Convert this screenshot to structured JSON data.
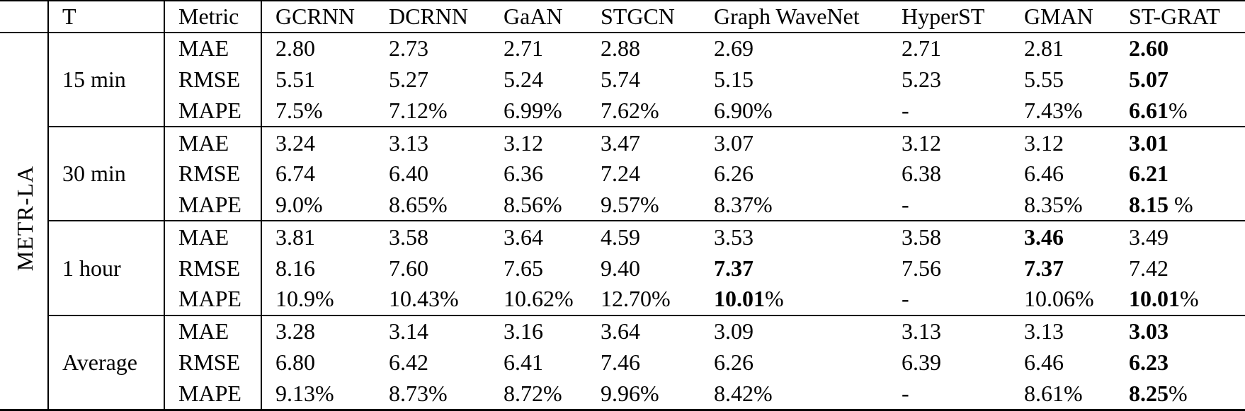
{
  "colors": {
    "text": "#000000",
    "background": "#ffffff",
    "rule": "#000000"
  },
  "table": {
    "dataset_label": "METR-LA",
    "header": {
      "corner": "",
      "t": "T",
      "metric": "Metric",
      "models": [
        "GCRNN",
        "DCRNN",
        "GaAN",
        "STGCN",
        "Graph WaveNet",
        "HyperST",
        "GMAN",
        "ST-GRAT"
      ]
    },
    "groups": [
      {
        "t": "15 min",
        "rows": [
          {
            "metric": "MAE",
            "values": [
              "2.80",
              "2.73",
              "2.71",
              "2.88",
              "2.69",
              "2.71",
              "2.81",
              "2.60"
            ],
            "bold": [
              7
            ]
          },
          {
            "metric": "RMSE",
            "values": [
              "5.51",
              "5.27",
              "5.24",
              "5.74",
              "5.15",
              "5.23",
              "5.55",
              "5.07"
            ],
            "bold": [
              7
            ]
          },
          {
            "metric": "MAPE",
            "values": [
              "7.5%",
              "7.12%",
              "6.99%",
              "7.62%",
              "6.90%",
              "-",
              "7.43%",
              "6.61%"
            ],
            "bold": [
              7
            ]
          }
        ]
      },
      {
        "t": "30 min",
        "rows": [
          {
            "metric": "MAE",
            "values": [
              "3.24",
              "3.13",
              "3.12",
              "3.47",
              "3.07",
              "3.12",
              "3.12",
              "3.01"
            ],
            "bold": [
              7
            ]
          },
          {
            "metric": "RMSE",
            "values": [
              "6.74",
              "6.40",
              "6.36",
              "7.24",
              "6.26",
              "6.38",
              "6.46",
              "6.21"
            ],
            "bold": [
              7
            ]
          },
          {
            "metric": "MAPE",
            "values": [
              "9.0%",
              "8.65%",
              "8.56%",
              "9.57%",
              "8.37%",
              "-",
              "8.35%",
              "8.15 %"
            ],
            "bold": [
              7
            ]
          }
        ]
      },
      {
        "t": "1 hour",
        "rows": [
          {
            "metric": "MAE",
            "values": [
              "3.81",
              "3.58",
              "3.64",
              "4.59",
              "3.53",
              "3.58",
              "3.46",
              "3.49"
            ],
            "bold": [
              6
            ]
          },
          {
            "metric": "RMSE",
            "values": [
              "8.16",
              "7.60",
              "7.65",
              "9.40",
              "7.37",
              "7.56",
              "7.37",
              "7.42"
            ],
            "bold": [
              4,
              6
            ]
          },
          {
            "metric": "MAPE",
            "values": [
              "10.9%",
              "10.43%",
              "10.62%",
              "12.70%",
              "10.01%",
              "-",
              "10.06%",
              "10.01%"
            ],
            "bold": [
              4,
              7
            ]
          }
        ]
      },
      {
        "t": "Average",
        "rows": [
          {
            "metric": "MAE",
            "values": [
              "3.28",
              "3.14",
              "3.16",
              "3.64",
              "3.09",
              "3.13",
              "3.13",
              "3.03"
            ],
            "bold": [
              7
            ]
          },
          {
            "metric": "RMSE",
            "values": [
              "6.80",
              "6.42",
              "6.41",
              "7.46",
              "6.26",
              "6.39",
              "6.46",
              "6.23"
            ],
            "bold": [
              7
            ]
          },
          {
            "metric": "MAPE",
            "values": [
              "9.13%",
              "8.73%",
              "8.72%",
              "9.96%",
              "8.42%",
              "-",
              "8.61%",
              "8.25%"
            ],
            "bold": [
              7
            ]
          }
        ]
      }
    ]
  }
}
